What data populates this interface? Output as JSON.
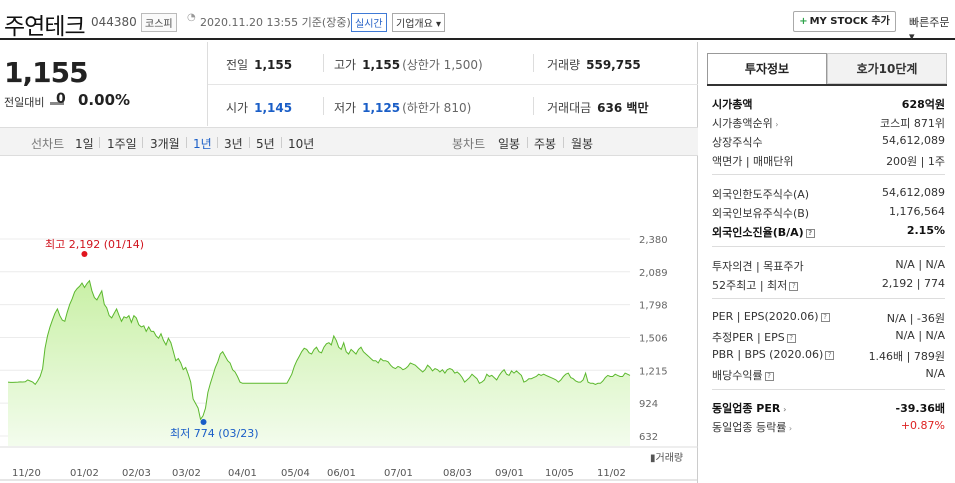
{
  "header": {
    "stock_name": "주연테크",
    "stock_code": "044380",
    "market_badge": "코스피",
    "date_text": "2020.11.20 13:55 기준(장중)",
    "realtime_badge": "실시간",
    "overview_button": "기업개요 ▾",
    "mystock_button": "MY STOCK 추가",
    "mystock_plus": "+",
    "quick_order": "빠른주문 ▾"
  },
  "price": {
    "current": "1,155",
    "change_label": "전일대비",
    "change_value": "0",
    "change_pct": "0.00%"
  },
  "stats": {
    "prev_label": "전일",
    "prev_value": "1,155",
    "high_label": "고가",
    "high_value": "1,155",
    "high_sub": "(상한가 1,500)",
    "volume_label": "거래량",
    "volume_value": "559,755",
    "open_label": "시가",
    "open_value": "1,145",
    "low_label": "저가",
    "low_value": "1,125",
    "low_sub": "(하한가 810)",
    "amount_label": "거래대금",
    "amount_value": "636 백만"
  },
  "period_bar": {
    "line_label": "선차트",
    "periods": [
      "1일",
      "1주일",
      "3개월",
      "1년",
      "3년",
      "5년",
      "10년"
    ],
    "active": "1년",
    "candle_label": "봉차트",
    "candles": [
      "일봉",
      "주봉",
      "월봉"
    ]
  },
  "chart_data": {
    "type": "area",
    "x_ticks": [
      "11/20",
      "01/02",
      "02/03",
      "03/02",
      "04/01",
      "05/04",
      "06/01",
      "07/01",
      "08/03",
      "09/01",
      "10/05",
      "11/02"
    ],
    "y_ticks": [
      2380,
      2089,
      1798,
      1506,
      1215,
      924,
      632
    ],
    "ylim": [
      632,
      2380
    ],
    "high_annotation": "최고 2,192 (01/14)",
    "low_annotation": "최저 774 (03/23)",
    "volume_legend": "거래량",
    "fill_color": "#c9f0a6",
    "line_color": "#5cb82e",
    "values": [
      1110,
      1108,
      1108,
      1109,
      1110,
      1112,
      1111,
      1113,
      1130,
      1120,
      1110,
      1090,
      1120,
      1160,
      1230,
      1410,
      1520,
      1600,
      1660,
      1720,
      1760,
      1700,
      1660,
      1650,
      1730,
      1800,
      1850,
      1910,
      1940,
      1960,
      1990,
      1950,
      1985,
      2010,
      1920,
      1860,
      1840,
      1880,
      1920,
      1800,
      1770,
      1700,
      1680,
      1720,
      1760,
      1700,
      1650,
      1690,
      1680,
      1700,
      1640,
      1700,
      1680,
      1620,
      1600,
      1610,
      1560,
      1600,
      1560,
      1560,
      1520,
      1500,
      1540,
      1480,
      1440,
      1500,
      1460,
      1380,
      1300,
      1320,
      1280,
      1220,
      1240,
      1180,
      1110,
      960,
      920,
      880,
      780,
      810,
      880,
      1020,
      1100,
      1170,
      1240,
      1290,
      1360,
      1380,
      1340,
      1300,
      1280,
      1220,
      1200,
      1160,
      1110,
      1100,
      1100,
      1100,
      1100,
      1100,
      1100,
      1100,
      1100,
      1100,
      1100,
      1100,
      1100,
      1100,
      1100,
      1100,
      1100,
      1100,
      1100,
      1100,
      1140,
      1180,
      1250,
      1300,
      1340,
      1380,
      1410,
      1400,
      1370,
      1360,
      1400,
      1420,
      1380,
      1370,
      1420,
      1450,
      1460,
      1440,
      1520,
      1480,
      1420,
      1400,
      1460,
      1380,
      1360,
      1400,
      1380,
      1360,
      1400,
      1420,
      1380,
      1360,
      1340,
      1320,
      1300,
      1300,
      1280,
      1320,
      1300,
      1300,
      1290,
      1260,
      1240,
      1230,
      1250,
      1240,
      1220,
      1230,
      1250,
      1280,
      1270,
      1260,
      1240,
      1220,
      1200,
      1220,
      1260,
      1240,
      1210,
      1230,
      1220,
      1200,
      1220,
      1190,
      1220,
      1230,
      1220,
      1190,
      1200,
      1180,
      1150,
      1110,
      1130,
      1150,
      1180,
      1160,
      1140,
      1100,
      1110,
      1130,
      1180,
      1160,
      1170,
      1150,
      1130,
      1170,
      1200,
      1220,
      1180,
      1170,
      1210,
      1190,
      1210,
      1190,
      1170,
      1110,
      1120,
      1140,
      1140,
      1150,
      1160,
      1180,
      1170,
      1180,
      1170,
      1160,
      1150,
      1140,
      1130,
      1110,
      1130,
      1160,
      1180,
      1190,
      1150,
      1140,
      1120,
      1110,
      1110,
      1130,
      1190,
      1110,
      1100,
      1100,
      1090,
      1100,
      1100,
      1120,
      1150,
      1170,
      1160,
      1160,
      1180,
      1170,
      1160,
      1160,
      1190,
      1180,
      1170
    ]
  },
  "invest_info": {
    "tab_active": "투자정보",
    "tab_other": "호가10단계",
    "group1": [
      {
        "label": "시가총액",
        "value": "628억원",
        "bold": true
      },
      {
        "label": "시가총액순위",
        "value": "코스피 871위",
        "arrow": true
      },
      {
        "label": "상장주식수",
        "value": "54,612,089"
      },
      {
        "label": "액면가 | 매매단위",
        "value": "200원 | 1주"
      }
    ],
    "group2": [
      {
        "label": "외국인한도주식수(A)",
        "value": "54,612,089"
      },
      {
        "label": "외국인보유주식수(B)",
        "value": "1,176,564"
      },
      {
        "label": "외국인소진율(B/A)",
        "value": "2.15%",
        "bold": true,
        "q": true
      }
    ],
    "group3": [
      {
        "label": "투자의견 | 목표주가",
        "value": "N/A | N/A"
      },
      {
        "label": "52주최고 | 최저",
        "value": "2,192 | 774",
        "q": true
      }
    ],
    "group4": [
      {
        "label": "PER | EPS(2020.06)",
        "value": "N/A | -36원",
        "q": true
      },
      {
        "label": "추정PER | EPS",
        "value": "N/A | N/A",
        "q": true
      },
      {
        "label": "PBR | BPS (2020.06)",
        "value": "1.46배 | 789원",
        "q": true
      },
      {
        "label": "배당수익률",
        "value": "N/A",
        "q": true
      }
    ],
    "group5": [
      {
        "label": "동일업종 PER",
        "value": "-39.36배",
        "bold": true,
        "arrow": true
      },
      {
        "label": "동일업종 등락률",
        "value": "+0.87%",
        "red": true,
        "arrow": true
      }
    ]
  }
}
